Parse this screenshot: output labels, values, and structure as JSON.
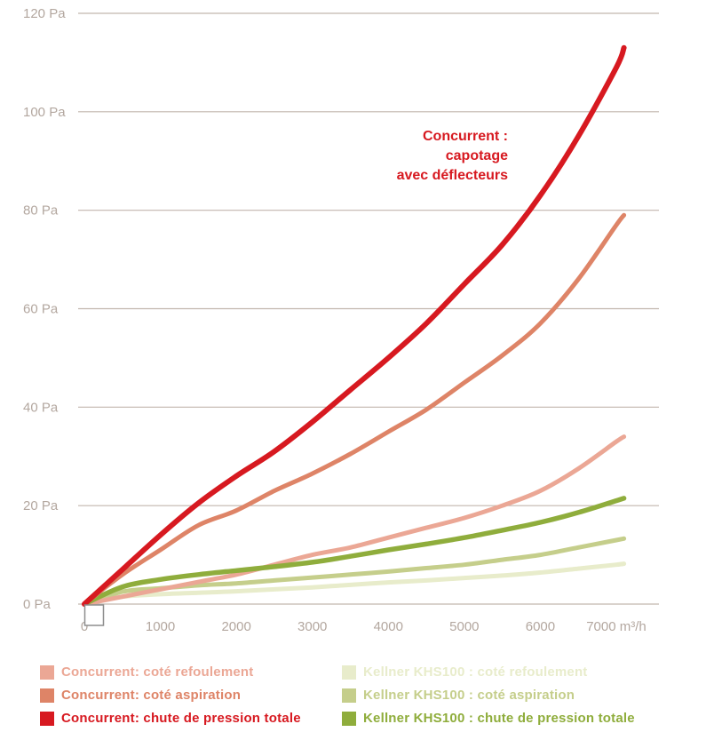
{
  "chart_data": {
    "type": "line",
    "title": "",
    "xlabel": "m³/h",
    "ylabel": "Pa",
    "xlim": [
      0,
      7600
    ],
    "ylim": [
      0,
      120
    ],
    "grid": "horizontal",
    "axis_text_color": "#b3a79f",
    "grid_color": "#c2b6ae",
    "y_ticks": [
      0,
      20,
      40,
      60,
      80,
      100,
      120
    ],
    "y_tick_labels": [
      "0 Pa",
      "20 Pa",
      "40 Pa",
      "60 Pa",
      "80 Pa",
      "100 Pa",
      "120 Pa"
    ],
    "x_ticks": [
      0,
      1000,
      2000,
      3000,
      4000,
      5000,
      6000,
      7000
    ],
    "x_tick_labels": [
      "0",
      "1000",
      "2000",
      "3000",
      "4000",
      "5000",
      "6000",
      "7000 m³/h"
    ],
    "x": [
      0,
      500,
      1000,
      1500,
      2000,
      2500,
      3000,
      3500,
      4000,
      4500,
      5000,
      5500,
      6000,
      6500,
      7000,
      7100
    ],
    "series": [
      {
        "name": "Concurrent: coté refoulement",
        "color": "#eba795",
        "width": 5,
        "values": [
          0,
          1.5,
          3,
          4.5,
          6,
          8,
          10,
          11.5,
          13.5,
          15.5,
          17.5,
          20,
          23,
          27.5,
          33,
          34
        ]
      },
      {
        "name": "Concurrent: coté aspiration",
        "color": "#de8467",
        "width": 5,
        "values": [
          0,
          6,
          11,
          16,
          19,
          23,
          26.5,
          30.5,
          35,
          39.5,
          45,
          50.5,
          57,
          66,
          77,
          79
        ]
      },
      {
        "name": "Concurrent: chute de pression totale",
        "color": "#d71920",
        "width": 6,
        "values": [
          0,
          7,
          14,
          20.5,
          26,
          31,
          37,
          43.5,
          50,
          57,
          65,
          73,
          83,
          95,
          109,
          113
        ]
      },
      {
        "name": "Kellner KHS100 : coté refoulement",
        "color": "#e8eccb",
        "width": 5,
        "values": [
          0,
          1.5,
          2,
          2.3,
          2.6,
          3,
          3.4,
          3.9,
          4.4,
          4.8,
          5.3,
          5.8,
          6.4,
          7.2,
          8,
          8.2
        ]
      },
      {
        "name": "Kellner KHS100 : coté aspiration",
        "color": "#c5ce8b",
        "width": 5,
        "values": [
          0,
          2.5,
          3.2,
          3.8,
          4.2,
          4.8,
          5.4,
          6,
          6.6,
          7.3,
          8,
          9,
          10,
          11.5,
          13,
          13.3
        ]
      },
      {
        "name": "Kellner KHS100 : chute de pression totale",
        "color": "#8fad3c",
        "width": 5.5,
        "values": [
          0,
          3.5,
          5,
          6,
          6.8,
          7.6,
          8.5,
          9.7,
          11,
          12.2,
          13.5,
          15,
          16.6,
          18.6,
          21,
          21.5
        ]
      }
    ],
    "annotation": {
      "lines": [
        "Concurrent :",
        "capotage",
        "avec déflecteurs"
      ],
      "color": "#d71920"
    },
    "legend_position": "bottom",
    "legend_columns": [
      [
        0,
        1,
        2
      ],
      [
        3,
        4,
        5
      ]
    ]
  }
}
